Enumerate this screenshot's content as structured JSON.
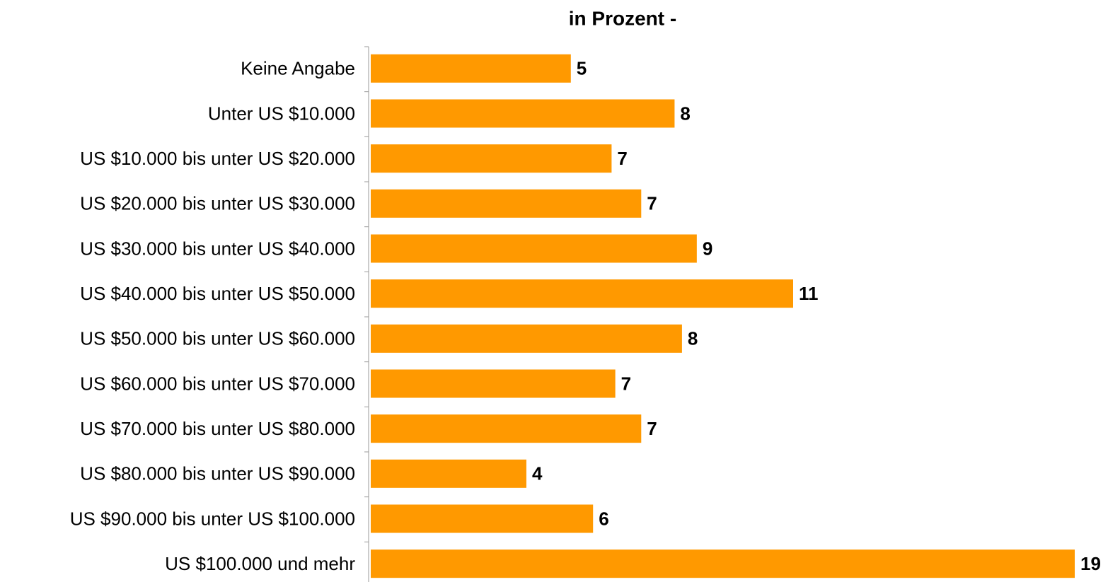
{
  "chart_data": {
    "type": "barh",
    "title": "in Prozent -",
    "categories": [
      "Keine Angabe",
      "Unter US $10.000",
      "US $10.000 bis unter US $20.000",
      "US $20.000 bis unter US $30.000",
      "US $30.000 bis unter US $40.000",
      "US $40.000 bis unter US $50.000",
      "US $50.000 bis unter US $60.000",
      "US $60.000 bis unter US $70.000",
      "US $70.000 bis unter US $80.000",
      "US $80.000 bis unter US $90.000",
      "US $90.000 bis unter US $100.000",
      "US $100.000 und mehr"
    ],
    "values": [
      5.4,
      8.2,
      6.5,
      7.3,
      8.8,
      11.4,
      8.4,
      6.6,
      7.3,
      4.2,
      6.0,
      19.0
    ],
    "value_labels": [
      "5",
      "8",
      "7",
      "7",
      "9",
      "11",
      "8",
      "7",
      "7",
      "4",
      "6",
      "19"
    ],
    "color": "#ff9900",
    "xlim": [
      0,
      19
    ]
  }
}
